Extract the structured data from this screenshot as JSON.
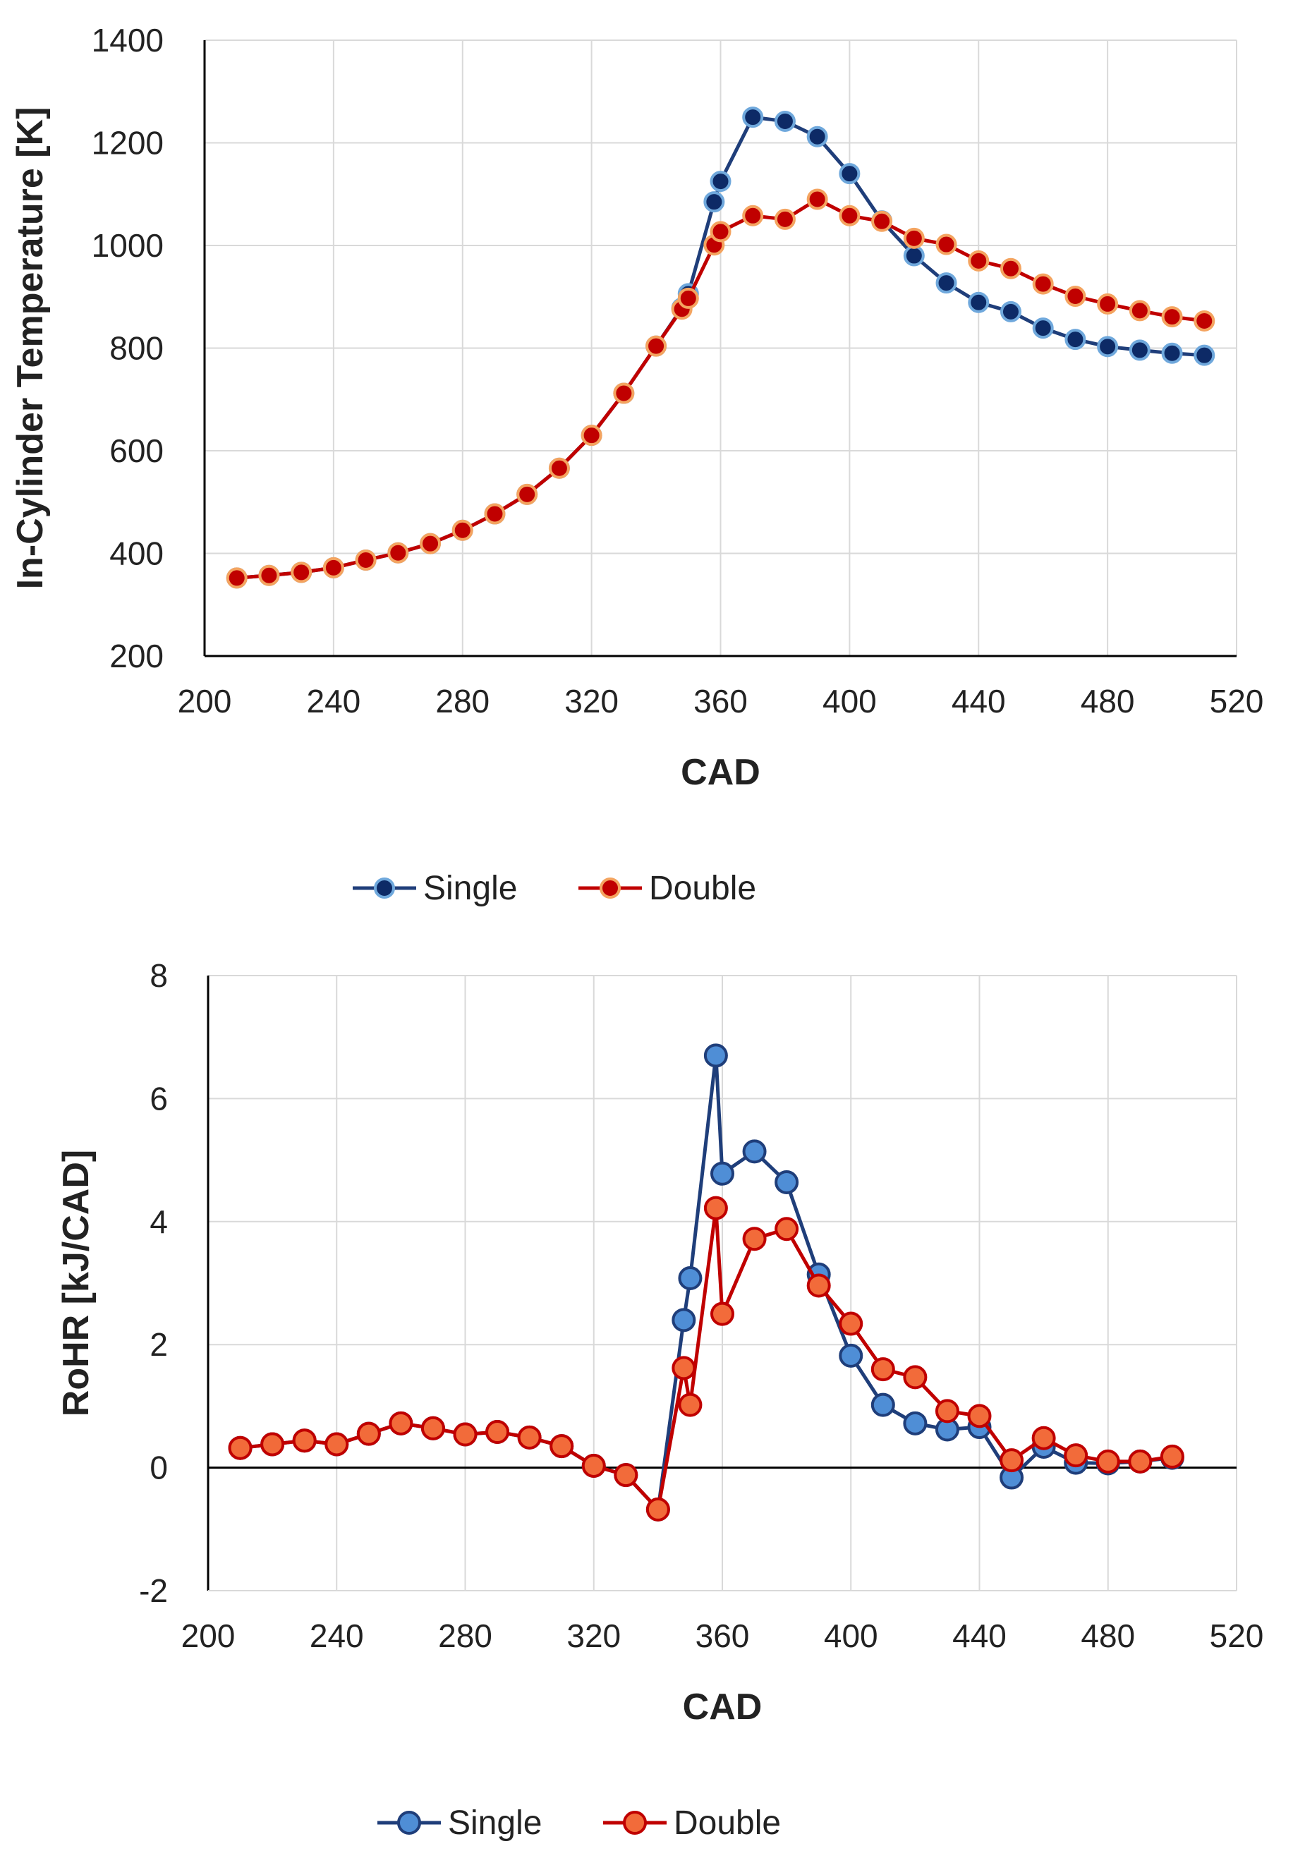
{
  "chart_data": [
    {
      "type": "line",
      "title": "",
      "xlabel": "CAD",
      "ylabel": "In-Cylinder Temperature [K]",
      "xlim": [
        200,
        520
      ],
      "ylim": [
        200,
        1400
      ],
      "xticks": [
        "200",
        "240",
        "280",
        "320",
        "360",
        "400",
        "440",
        "480",
        "520"
      ],
      "yticks": [
        "200",
        "400",
        "600",
        "800",
        "1000",
        "1200",
        "1400"
      ],
      "grid": true,
      "legend_position": "bottom",
      "series": [
        {
          "name": "Single",
          "color": "#1f3e7a",
          "marker_fill": "#0d2a66",
          "marker_edge": "#6fa8dc",
          "x": [
            210,
            220,
            230,
            240,
            250,
            260,
            270,
            280,
            290,
            300,
            310,
            320,
            330,
            340,
            348,
            350,
            358,
            360,
            370,
            380,
            390,
            400,
            410,
            420,
            430,
            440,
            450,
            460,
            470,
            480,
            490,
            500,
            510
          ],
          "y": [
            352,
            357,
            363,
            372,
            387,
            401,
            419,
            445,
            477,
            515,
            566,
            630,
            712,
            804,
            878,
            906,
            1085,
            1125,
            1250,
            1242,
            1212,
            1140,
            1048,
            980,
            927,
            889,
            871,
            839,
            817,
            803,
            796,
            790,
            786
          ]
        },
        {
          "name": "Double",
          "color": "#c00000",
          "marker_fill": "#c00000",
          "marker_edge": "#f4a460",
          "x": [
            210,
            220,
            230,
            240,
            250,
            260,
            270,
            280,
            290,
            300,
            310,
            320,
            330,
            340,
            348,
            350,
            358,
            360,
            370,
            380,
            390,
            400,
            410,
            420,
            430,
            440,
            450,
            460,
            470,
            480,
            490,
            500,
            510
          ],
          "y": [
            352,
            357,
            363,
            372,
            387,
            401,
            419,
            445,
            477,
            515,
            566,
            630,
            712,
            804,
            876,
            897,
            1001,
            1027,
            1058,
            1051,
            1090,
            1058,
            1047,
            1014,
            1002,
            970,
            955,
            925,
            901,
            886,
            873,
            861,
            853
          ]
        }
      ]
    },
    {
      "type": "line",
      "title": "",
      "xlabel": "CAD",
      "ylabel": "RoHR [kJ/CAD]",
      "xlim": [
        200,
        520
      ],
      "ylim": [
        -2,
        8
      ],
      "xticks": [
        "200",
        "240",
        "280",
        "320",
        "360",
        "400",
        "440",
        "480",
        "520"
      ],
      "yticks": [
        "-2",
        "0",
        "2",
        "4",
        "6",
        "8"
      ],
      "grid": true,
      "zero_line": true,
      "legend_position": "bottom",
      "series": [
        {
          "name": "Single",
          "color": "#1f3e7a",
          "marker_fill": "#4f8ed6",
          "marker_edge": "#1f3e7a",
          "x": [
            210,
            220,
            230,
            240,
            250,
            260,
            270,
            280,
            290,
            300,
            310,
            320,
            330,
            340,
            348,
            350,
            358,
            360,
            370,
            380,
            390,
            400,
            410,
            420,
            430,
            440,
            450,
            460,
            470,
            480,
            490,
            500
          ],
          "y": [
            0.32,
            0.38,
            0.44,
            0.38,
            0.55,
            0.72,
            0.64,
            0.54,
            0.58,
            0.49,
            0.35,
            0.03,
            -0.12,
            -0.68,
            2.4,
            3.08,
            6.7,
            4.78,
            5.14,
            4.64,
            3.14,
            1.82,
            1.02,
            0.72,
            0.62,
            0.66,
            -0.16,
            0.34,
            0.08,
            0.07,
            0.1,
            0.16
          ]
        },
        {
          "name": "Double",
          "color": "#c00000",
          "marker_fill": "#f26b3a",
          "marker_edge": "#c00000",
          "x": [
            210,
            220,
            230,
            240,
            250,
            260,
            270,
            280,
            290,
            300,
            310,
            320,
            330,
            340,
            348,
            350,
            358,
            360,
            370,
            380,
            390,
            400,
            410,
            420,
            430,
            440,
            450,
            460,
            470,
            480,
            490,
            500
          ],
          "y": [
            0.32,
            0.38,
            0.44,
            0.38,
            0.55,
            0.72,
            0.64,
            0.54,
            0.58,
            0.49,
            0.35,
            0.03,
            -0.12,
            -0.68,
            1.62,
            1.02,
            4.22,
            2.5,
            3.72,
            3.88,
            2.96,
            2.34,
            1.6,
            1.47,
            0.92,
            0.84,
            0.12,
            0.48,
            0.2,
            0.1,
            0.1,
            0.18
          ]
        }
      ]
    }
  ]
}
